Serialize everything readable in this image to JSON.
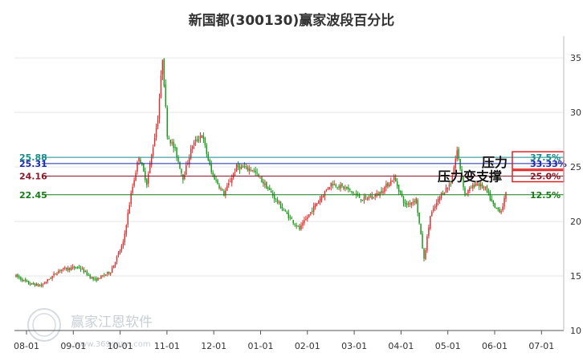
{
  "chart_data": {
    "type": "candlestick",
    "title": "新国都(300130)赢家波段百分比",
    "xlabel": "",
    "ylabel": "",
    "ylim": [
      10,
      37
    ],
    "yticks": [
      10,
      15,
      20,
      25,
      30,
      35
    ],
    "xticks": [
      "08-01",
      "09-01",
      "10-01",
      "11-01",
      "12-01",
      "01-01",
      "02-01",
      "03-01",
      "04-01",
      "05-01",
      "06-01",
      "07-01"
    ],
    "grid": "horizontal",
    "up_color": "#e03030",
    "down_color": "#1a9a1a",
    "levels": [
      {
        "value": 25.88,
        "value_label": "25.88",
        "pct_label": "37.5%",
        "color": "#1a8a8a"
      },
      {
        "value": 25.31,
        "value_label": "25.31",
        "pct_label": "33.33%",
        "color": "#1a2aa8"
      },
      {
        "value": 24.16,
        "value_label": "24.16",
        "pct_label": "25.0%",
        "color": "#8a1a2a"
      },
      {
        "value": 22.45,
        "value_label": "22.45",
        "pct_label": "12.5%",
        "color": "#1a7a1a"
      }
    ],
    "annotations": [
      {
        "text": "压力",
        "near": "33.33%"
      },
      {
        "text": "压力变支撑",
        "near": "25.0%"
      }
    ],
    "anchors": [
      {
        "i": 0,
        "v": 15.0
      },
      {
        "i": 8,
        "v": 14.3
      },
      {
        "i": 16,
        "v": 14.1
      },
      {
        "i": 28,
        "v": 15.6
      },
      {
        "i": 40,
        "v": 15.8
      },
      {
        "i": 50,
        "v": 14.6
      },
      {
        "i": 60,
        "v": 15.4
      },
      {
        "i": 68,
        "v": 18.0
      },
      {
        "i": 73,
        "v": 22.5
      },
      {
        "i": 78,
        "v": 26.0
      },
      {
        "i": 83,
        "v": 23.5
      },
      {
        "i": 90,
        "v": 29.5
      },
      {
        "i": 93,
        "v": 35.0
      },
      {
        "i": 96,
        "v": 28.0
      },
      {
        "i": 101,
        "v": 26.5
      },
      {
        "i": 106,
        "v": 24.0
      },
      {
        "i": 112,
        "v": 27.0
      },
      {
        "i": 118,
        "v": 28.0
      },
      {
        "i": 124,
        "v": 24.5
      },
      {
        "i": 132,
        "v": 22.5
      },
      {
        "i": 140,
        "v": 25.0
      },
      {
        "i": 150,
        "v": 24.8
      },
      {
        "i": 160,
        "v": 23.0
      },
      {
        "i": 170,
        "v": 21.0
      },
      {
        "i": 180,
        "v": 19.3
      },
      {
        "i": 190,
        "v": 21.5
      },
      {
        "i": 200,
        "v": 23.5
      },
      {
        "i": 210,
        "v": 23.0
      },
      {
        "i": 220,
        "v": 22.0
      },
      {
        "i": 230,
        "v": 22.5
      },
      {
        "i": 240,
        "v": 24.0
      },
      {
        "i": 247,
        "v": 21.5
      },
      {
        "i": 254,
        "v": 22.0
      },
      {
        "i": 259,
        "v": 16.5
      },
      {
        "i": 263,
        "v": 20.5
      },
      {
        "i": 270,
        "v": 22.5
      },
      {
        "i": 276,
        "v": 23.5
      },
      {
        "i": 280,
        "v": 26.5
      },
      {
        "i": 285,
        "v": 22.5
      },
      {
        "i": 292,
        "v": 23.5
      },
      {
        "i": 298,
        "v": 23.0
      },
      {
        "i": 304,
        "v": 21.2
      },
      {
        "i": 308,
        "v": 21.0
      },
      {
        "i": 311,
        "v": 22.5
      }
    ],
    "total_bars": 312
  },
  "watermark": {
    "text": "赢家江恩软件",
    "url": "www.369gann.com",
    "logo": "logo-seal"
  }
}
